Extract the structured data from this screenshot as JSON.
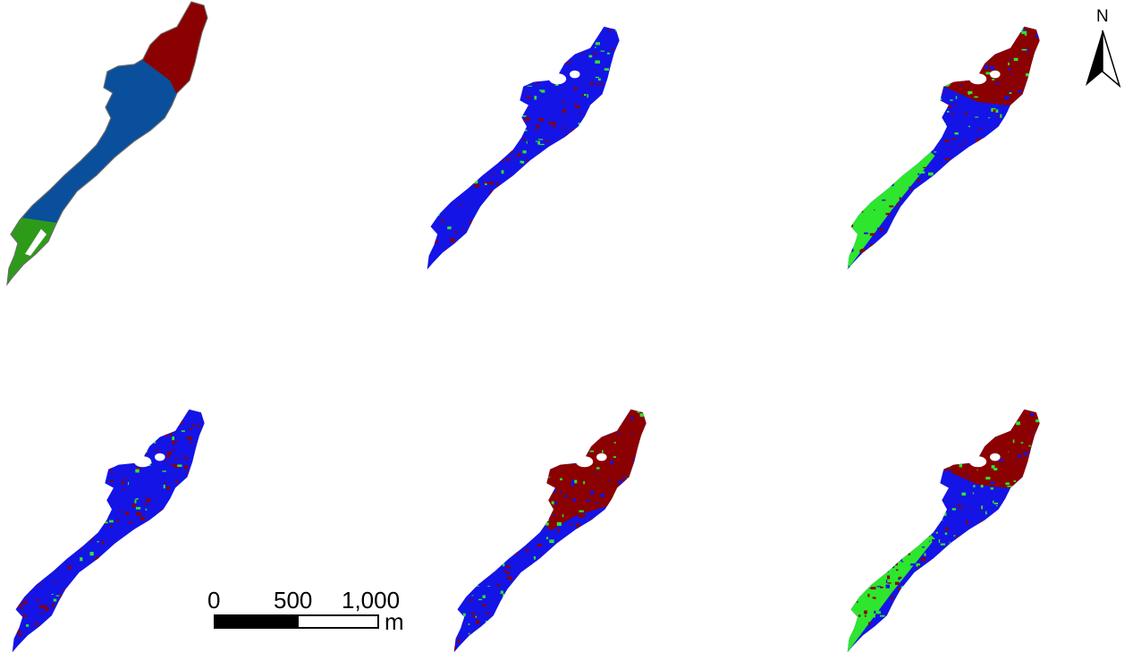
{
  "panels": [
    {
      "id": "panel-1",
      "style": "zones",
      "zone_colors": [
        "#2e9a1a",
        "#0a4f9c",
        "#8b0000"
      ],
      "outline": "#6b6b6b"
    },
    {
      "id": "panel-2",
      "style": "mixed",
      "dominant": "blue",
      "seed": 11
    },
    {
      "id": "panel-3",
      "style": "zoned-noisy",
      "seed": 23
    },
    {
      "id": "panel-4",
      "style": "mixed",
      "dominant": "blue",
      "seed": 37
    },
    {
      "id": "panel-5",
      "style": "red-north",
      "seed": 41
    },
    {
      "id": "panel-6",
      "style": "zoned-noisy",
      "seed": 53
    }
  ],
  "class_colors": {
    "red": "#8b0000",
    "blue": "#1414e6",
    "green": "#2ee62e"
  },
  "scale_bar": {
    "labels": [
      "0",
      "500",
      "1,000"
    ],
    "unit": "m"
  },
  "north_arrow": {
    "label": "N"
  }
}
